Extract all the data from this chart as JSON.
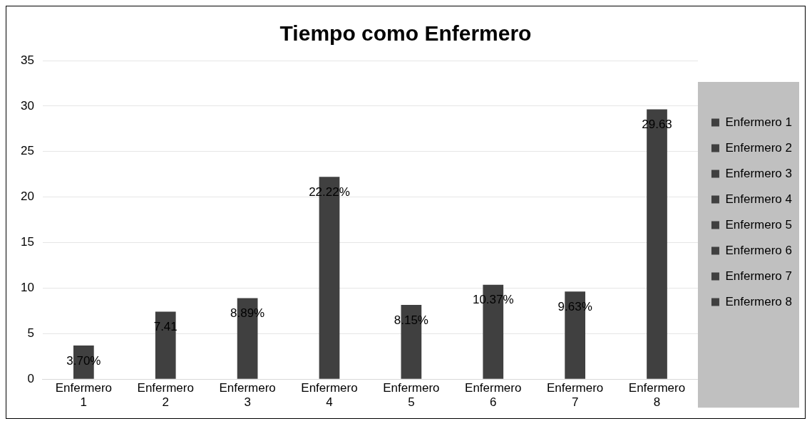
{
  "chart_data": {
    "type": "bar",
    "title": "Tiempo como Enfermero",
    "categories": [
      "Enfermero 1",
      "Enfermero 2",
      "Enfermero 3",
      "Enfermero 4",
      "Enfermero 5",
      "Enfermero 6",
      "Enfermero 7",
      "Enfermero 8"
    ],
    "series": [
      {
        "name": "Enfermero 1",
        "color": "#404040",
        "values": [
          3.7,
          null,
          null,
          null,
          null,
          null,
          null,
          null
        ],
        "value_labels": [
          "3.70%",
          null,
          null,
          null,
          null,
          null,
          null,
          null
        ]
      },
      {
        "name": "Enfermero 2",
        "color": "#404040",
        "values": [
          null,
          7.41,
          null,
          null,
          null,
          null,
          null,
          null
        ],
        "value_labels": [
          null,
          "7.41",
          null,
          null,
          null,
          null,
          null,
          null
        ]
      },
      {
        "name": "Enfermero 3",
        "color": "#404040",
        "values": [
          null,
          null,
          8.89,
          null,
          null,
          null,
          null,
          null
        ],
        "value_labels": [
          null,
          null,
          "8.89%",
          null,
          null,
          null,
          null,
          null
        ]
      },
      {
        "name": "Enfermero 4",
        "color": "#404040",
        "values": [
          null,
          null,
          null,
          22.22,
          null,
          null,
          null,
          null
        ],
        "value_labels": [
          null,
          null,
          null,
          "22.22%",
          null,
          null,
          null,
          null
        ]
      },
      {
        "name": "Enfermero 5",
        "color": "#404040",
        "values": [
          null,
          null,
          null,
          null,
          8.15,
          null,
          null,
          null
        ],
        "value_labels": [
          null,
          null,
          null,
          null,
          "8.15%",
          null,
          null,
          null
        ]
      },
      {
        "name": "Enfermero 6",
        "color": "#404040",
        "values": [
          null,
          null,
          null,
          null,
          null,
          10.37,
          null,
          null
        ],
        "value_labels": [
          null,
          null,
          null,
          null,
          null,
          "10.37%",
          null,
          null
        ]
      },
      {
        "name": "Enfermero 7",
        "color": "#404040",
        "values": [
          null,
          null,
          null,
          null,
          null,
          null,
          9.63,
          null
        ],
        "value_labels": [
          null,
          null,
          null,
          null,
          null,
          null,
          "9.63%",
          null
        ]
      },
      {
        "name": "Enfermero 8",
        "color": "#404040",
        "values": [
          null,
          null,
          null,
          null,
          null,
          null,
          null,
          29.63
        ],
        "value_labels": [
          null,
          null,
          null,
          null,
          null,
          null,
          null,
          "29.63"
        ]
      }
    ],
    "ylim": [
      0,
      35
    ],
    "yticks": [
      0,
      5,
      10,
      15,
      20,
      25,
      30,
      35
    ],
    "grid": "y",
    "legend": "right"
  }
}
